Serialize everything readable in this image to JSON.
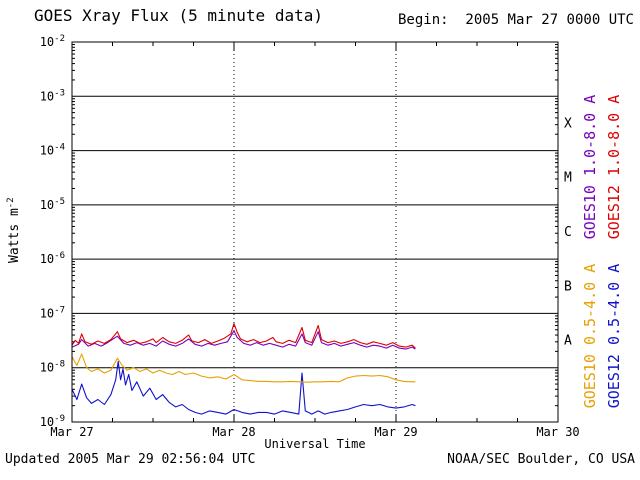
{
  "header": {
    "title": "GOES Xray Flux (5 minute data)",
    "begin_label": "Begin:  2005 Mar 27 0000 UTC"
  },
  "footer": {
    "updated": "Updated 2005 Mar 29 02:56:04 UTC",
    "org": "NOAA/SEC Boulder, CO USA"
  },
  "chart_data": {
    "type": "line",
    "title": "GOES Xray Flux (5 minute data)",
    "xlabel": "Universal Time",
    "ylabel_base": "Watts m",
    "ylabel_exp": "-2",
    "x_axis": {
      "unit": "days from 2005 Mar 27 0000 UTC",
      "min": 0,
      "max": 3,
      "major_ticks": [
        {
          "t": 0,
          "label": "Mar 27"
        },
        {
          "t": 1,
          "label": "Mar 28"
        },
        {
          "t": 2,
          "label": "Mar 29"
        },
        {
          "t": 3,
          "label": "Mar 30"
        }
      ],
      "minor_tick_days": 0.25,
      "day_gridline_style": "dotted"
    },
    "y_axis": {
      "scale": "log",
      "min_exp": -9,
      "max_exp": -2,
      "tick_exponents": [
        -2,
        -3,
        -4,
        -5,
        -6,
        -7,
        -8,
        -9
      ],
      "gridline_style": "solid"
    },
    "flare_classes": [
      {
        "label": "X",
        "upper_exp": -3,
        "lower_exp": -4
      },
      {
        "label": "M",
        "upper_exp": -4,
        "lower_exp": -5
      },
      {
        "label": "C",
        "upper_exp": -5,
        "lower_exp": -6
      },
      {
        "label": "B",
        "upper_exp": -6,
        "lower_exp": -7
      },
      {
        "label": "A",
        "upper_exp": -7,
        "lower_exp": -8
      }
    ],
    "series": [
      {
        "id": "goes12-short",
        "name": "GOES12 0.5-4.0 A",
        "color": "#1111cc",
        "legend_col": 2,
        "legend_row": 2,
        "points": [
          [
            0.0,
            4e-09
          ],
          [
            0.03,
            2.6e-09
          ],
          [
            0.06,
            5e-09
          ],
          [
            0.09,
            2.8e-09
          ],
          [
            0.12,
            2.2e-09
          ],
          [
            0.16,
            2.6e-09
          ],
          [
            0.2,
            2.1e-09
          ],
          [
            0.24,
            3.2e-09
          ],
          [
            0.27,
            6e-09
          ],
          [
            0.285,
            1.3e-08
          ],
          [
            0.3,
            6e-09
          ],
          [
            0.315,
            9.5e-09
          ],
          [
            0.33,
            4.8e-09
          ],
          [
            0.35,
            7.5e-09
          ],
          [
            0.37,
            3.8e-09
          ],
          [
            0.4,
            5.5e-09
          ],
          [
            0.44,
            3e-09
          ],
          [
            0.48,
            4.2e-09
          ],
          [
            0.52,
            2.6e-09
          ],
          [
            0.56,
            3.2e-09
          ],
          [
            0.6,
            2.3e-09
          ],
          [
            0.64,
            1.9e-09
          ],
          [
            0.68,
            2.1e-09
          ],
          [
            0.72,
            1.7e-09
          ],
          [
            0.76,
            1.5e-09
          ],
          [
            0.8,
            1.4e-09
          ],
          [
            0.85,
            1.6e-09
          ],
          [
            0.9,
            1.5e-09
          ],
          [
            0.95,
            1.4e-09
          ],
          [
            1.0,
            1.7e-09
          ],
          [
            1.05,
            1.5e-09
          ],
          [
            1.1,
            1.4e-09
          ],
          [
            1.15,
            1.5e-09
          ],
          [
            1.2,
            1.5e-09
          ],
          [
            1.25,
            1.4e-09
          ],
          [
            1.3,
            1.6e-09
          ],
          [
            1.35,
            1.5e-09
          ],
          [
            1.4,
            1.4e-09
          ],
          [
            1.42,
            8e-09
          ],
          [
            1.44,
            1.6e-09
          ],
          [
            1.48,
            1.4e-09
          ],
          [
            1.52,
            1.6e-09
          ],
          [
            1.56,
            1.4e-09
          ],
          [
            1.6,
            1.5e-09
          ],
          [
            1.65,
            1.6e-09
          ],
          [
            1.7,
            1.7e-09
          ],
          [
            1.75,
            1.9e-09
          ],
          [
            1.8,
            2.1e-09
          ],
          [
            1.85,
            2e-09
          ],
          [
            1.9,
            2.1e-09
          ],
          [
            1.95,
            1.9e-09
          ],
          [
            2.0,
            1.8e-09
          ],
          [
            2.05,
            1.9e-09
          ],
          [
            2.1,
            2.1e-09
          ],
          [
            2.12,
            2e-09
          ]
        ]
      },
      {
        "id": "goes10-short",
        "name": "GOES10 0.5-4.0 A",
        "color": "#e8a000",
        "legend_col": 1,
        "legend_row": 2,
        "points": [
          [
            0.0,
            1.6e-08
          ],
          [
            0.03,
            1.1e-08
          ],
          [
            0.06,
            1.8e-08
          ],
          [
            0.09,
            1e-08
          ],
          [
            0.12,
            8.5e-09
          ],
          [
            0.16,
            9.5e-09
          ],
          [
            0.2,
            8e-09
          ],
          [
            0.24,
            9e-09
          ],
          [
            0.28,
            1.5e-08
          ],
          [
            0.31,
            1.1e-08
          ],
          [
            0.34,
            9e-09
          ],
          [
            0.38,
            1e-08
          ],
          [
            0.42,
            8.5e-09
          ],
          [
            0.46,
            9.5e-09
          ],
          [
            0.5,
            8e-09
          ],
          [
            0.54,
            9e-09
          ],
          [
            0.58,
            8e-09
          ],
          [
            0.62,
            7.5e-09
          ],
          [
            0.66,
            8.5e-09
          ],
          [
            0.7,
            7.5e-09
          ],
          [
            0.75,
            8e-09
          ],
          [
            0.8,
            7e-09
          ],
          [
            0.85,
            6.5e-09
          ],
          [
            0.9,
            6.8e-09
          ],
          [
            0.95,
            6.2e-09
          ],
          [
            1.0,
            7.5e-09
          ],
          [
            1.05,
            6e-09
          ],
          [
            1.1,
            5.8e-09
          ],
          [
            1.15,
            5.6e-09
          ],
          [
            1.2,
            5.6e-09
          ],
          [
            1.25,
            5.5e-09
          ],
          [
            1.3,
            5.5e-09
          ],
          [
            1.35,
            5.6e-09
          ],
          [
            1.4,
            5.5e-09
          ],
          [
            1.45,
            5.4e-09
          ],
          [
            1.5,
            5.5e-09
          ],
          [
            1.55,
            5.5e-09
          ],
          [
            1.6,
            5.6e-09
          ],
          [
            1.65,
            5.5e-09
          ],
          [
            1.7,
            6.5e-09
          ],
          [
            1.75,
            7e-09
          ],
          [
            1.8,
            7.2e-09
          ],
          [
            1.85,
            7e-09
          ],
          [
            1.9,
            7.2e-09
          ],
          [
            1.95,
            6.8e-09
          ],
          [
            2.0,
            6e-09
          ],
          [
            2.05,
            5.6e-09
          ],
          [
            2.1,
            5.5e-09
          ],
          [
            2.12,
            5.5e-09
          ]
        ]
      },
      {
        "id": "goes10-long",
        "name": "GOES10 1.0-8.0 A",
        "color": "#7700bb",
        "legend_col": 1,
        "legend_row": 1,
        "points": [
          [
            0.0,
            2.4e-08
          ],
          [
            0.04,
            2.7e-08
          ],
          [
            0.06,
            3.3e-08
          ],
          [
            0.1,
            2.5e-08
          ],
          [
            0.14,
            2.8e-08
          ],
          [
            0.18,
            2.5e-08
          ],
          [
            0.22,
            2.9e-08
          ],
          [
            0.28,
            3.8e-08
          ],
          [
            0.32,
            2.8e-08
          ],
          [
            0.36,
            2.6e-08
          ],
          [
            0.4,
            2.9e-08
          ],
          [
            0.44,
            2.6e-08
          ],
          [
            0.48,
            2.8e-08
          ],
          [
            0.52,
            2.5e-08
          ],
          [
            0.56,
            3.1e-08
          ],
          [
            0.6,
            2.7e-08
          ],
          [
            0.64,
            2.5e-08
          ],
          [
            0.68,
            2.8e-08
          ],
          [
            0.72,
            3.4e-08
          ],
          [
            0.76,
            2.7e-08
          ],
          [
            0.8,
            2.5e-08
          ],
          [
            0.84,
            2.8e-08
          ],
          [
            0.88,
            2.6e-08
          ],
          [
            0.92,
            2.8e-08
          ],
          [
            0.96,
            3e-08
          ],
          [
            1.0,
            4.8e-08
          ],
          [
            1.02,
            3.6e-08
          ],
          [
            1.06,
            2.8e-08
          ],
          [
            1.1,
            2.6e-08
          ],
          [
            1.14,
            2.9e-08
          ],
          [
            1.18,
            2.6e-08
          ],
          [
            1.22,
            2.8e-08
          ],
          [
            1.26,
            2.6e-08
          ],
          [
            1.3,
            2.4e-08
          ],
          [
            1.34,
            2.7e-08
          ],
          [
            1.38,
            2.5e-08
          ],
          [
            1.42,
            4.2e-08
          ],
          [
            1.44,
            2.9e-08
          ],
          [
            1.48,
            2.6e-08
          ],
          [
            1.52,
            4.6e-08
          ],
          [
            1.54,
            2.9e-08
          ],
          [
            1.58,
            2.6e-08
          ],
          [
            1.62,
            2.8e-08
          ],
          [
            1.66,
            2.5e-08
          ],
          [
            1.7,
            2.7e-08
          ],
          [
            1.74,
            2.9e-08
          ],
          [
            1.78,
            2.6e-08
          ],
          [
            1.82,
            2.4e-08
          ],
          [
            1.86,
            2.6e-08
          ],
          [
            1.9,
            2.5e-08
          ],
          [
            1.94,
            2.3e-08
          ],
          [
            1.98,
            2.6e-08
          ],
          [
            2.02,
            2.3e-08
          ],
          [
            2.06,
            2.2e-08
          ],
          [
            2.1,
            2.4e-08
          ],
          [
            2.12,
            2.2e-08
          ]
        ]
      },
      {
        "id": "goes12-long",
        "name": "GOES12 1.0-8.0 A",
        "color": "#dd0000",
        "legend_col": 2,
        "legend_row": 1,
        "points": [
          [
            0.0,
            2.6e-08
          ],
          [
            0.02,
            3.2e-08
          ],
          [
            0.04,
            2.8e-08
          ],
          [
            0.06,
            4.2e-08
          ],
          [
            0.08,
            3e-08
          ],
          [
            0.12,
            2.7e-08
          ],
          [
            0.16,
            3.1e-08
          ],
          [
            0.2,
            2.8e-08
          ],
          [
            0.24,
            3.3e-08
          ],
          [
            0.28,
            4.6e-08
          ],
          [
            0.3,
            3.4e-08
          ],
          [
            0.34,
            2.9e-08
          ],
          [
            0.38,
            3.2e-08
          ],
          [
            0.42,
            2.8e-08
          ],
          [
            0.46,
            3e-08
          ],
          [
            0.5,
            3.4e-08
          ],
          [
            0.52,
            2.9e-08
          ],
          [
            0.56,
            3.6e-08
          ],
          [
            0.6,
            3e-08
          ],
          [
            0.64,
            2.8e-08
          ],
          [
            0.68,
            3.2e-08
          ],
          [
            0.72,
            4e-08
          ],
          [
            0.74,
            3.1e-08
          ],
          [
            0.78,
            2.9e-08
          ],
          [
            0.82,
            3.3e-08
          ],
          [
            0.86,
            2.8e-08
          ],
          [
            0.9,
            3.1e-08
          ],
          [
            0.94,
            3.5e-08
          ],
          [
            0.98,
            4.2e-08
          ],
          [
            1.0,
            6.5e-08
          ],
          [
            1.02,
            4.5e-08
          ],
          [
            1.04,
            3.4e-08
          ],
          [
            1.08,
            3e-08
          ],
          [
            1.12,
            3.3e-08
          ],
          [
            1.16,
            2.9e-08
          ],
          [
            1.2,
            3.1e-08
          ],
          [
            1.24,
            3.6e-08
          ],
          [
            1.26,
            3e-08
          ],
          [
            1.3,
            2.8e-08
          ],
          [
            1.34,
            3.2e-08
          ],
          [
            1.38,
            2.9e-08
          ],
          [
            1.42,
            5.5e-08
          ],
          [
            1.44,
            3.2e-08
          ],
          [
            1.48,
            2.9e-08
          ],
          [
            1.52,
            6e-08
          ],
          [
            1.54,
            3.3e-08
          ],
          [
            1.58,
            2.9e-08
          ],
          [
            1.62,
            3.1e-08
          ],
          [
            1.66,
            2.8e-08
          ],
          [
            1.7,
            3e-08
          ],
          [
            1.74,
            3.3e-08
          ],
          [
            1.78,
            2.9e-08
          ],
          [
            1.82,
            2.7e-08
          ],
          [
            1.86,
            3e-08
          ],
          [
            1.9,
            2.8e-08
          ],
          [
            1.94,
            2.6e-08
          ],
          [
            1.98,
            2.9e-08
          ],
          [
            2.02,
            2.5e-08
          ],
          [
            2.06,
            2.4e-08
          ],
          [
            2.1,
            2.6e-08
          ],
          [
            2.12,
            2.3e-08
          ]
        ]
      }
    ]
  }
}
